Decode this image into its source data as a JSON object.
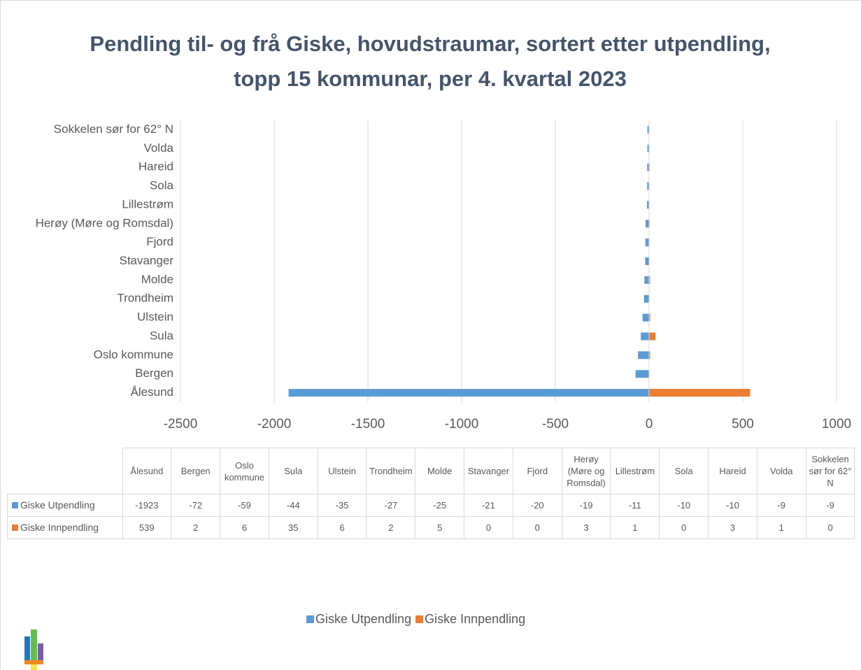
{
  "chart_data": {
    "type": "hbar",
    "title": "Pendling til- og frå Giske, hovudstraumar, sortert etter utpendling, topp 15 kommunar, per 4. kvartal 2023",
    "categories": [
      "Ålesund",
      "Bergen",
      "Oslo kommune",
      "Sula",
      "Ulstein",
      "Trondheim",
      "Molde",
      "Stavanger",
      "Fjord",
      "Herøy (Møre og Romsdal)",
      "Lillestrøm",
      "Sola",
      "Hareid",
      "Volda",
      "Sokkelen sør for 62° N"
    ],
    "series": [
      {
        "name": "Giske Utpendling",
        "color": "#5B9BD5",
        "values": [
          -1923,
          -72,
          -59,
          -44,
          -35,
          -27,
          -25,
          -21,
          -20,
          -19,
          -11,
          -10,
          -10,
          -9,
          -9
        ]
      },
      {
        "name": "Giske Innpendling",
        "color": "#ED7D31",
        "values": [
          539,
          2,
          6,
          35,
          6,
          2,
          5,
          0,
          0,
          3,
          1,
          0,
          3,
          1,
          0
        ]
      }
    ],
    "xlim": [
      -2500,
      1000
    ],
    "xticks": [
      -2500,
      -2000,
      -1500,
      -1000,
      -500,
      0,
      500,
      1000
    ],
    "grid": true,
    "legend": "bottom",
    "data_table": true
  }
}
